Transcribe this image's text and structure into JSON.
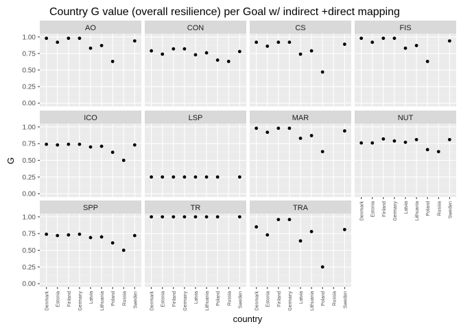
{
  "chart_data": {
    "type": "scatter",
    "title": "Country G value (overall resilience) per Goal w/ indirect +direct mapping",
    "xlabel": "country",
    "ylabel": "G",
    "categories": [
      "Denmark",
      "Estonia",
      "Finland",
      "Germany",
      "Latvia",
      "Lithuania",
      "Poland",
      "Russia",
      "Sweden"
    ],
    "yticks": [
      "0.00",
      "0.25",
      "0.50",
      "0.75",
      "1.00"
    ],
    "ylim": [
      -0.05,
      1.05
    ],
    "facet_layout": "wrap, 4 columns",
    "grid": true,
    "panels": [
      {
        "name": "AO",
        "values": [
          0.98,
          0.92,
          0.98,
          0.98,
          0.83,
          0.87,
          0.63,
          null,
          0.94
        ]
      },
      {
        "name": "CON",
        "values": [
          0.79,
          0.74,
          0.82,
          0.82,
          0.73,
          0.76,
          0.65,
          0.63,
          0.78
        ]
      },
      {
        "name": "CS",
        "values": [
          0.92,
          0.86,
          0.92,
          0.92,
          0.74,
          0.79,
          0.47,
          null,
          0.89
        ]
      },
      {
        "name": "FIS",
        "values": [
          0.98,
          0.92,
          0.98,
          0.98,
          0.83,
          0.87,
          0.63,
          null,
          0.94
        ]
      },
      {
        "name": "ICO",
        "values": [
          0.74,
          0.73,
          0.74,
          0.74,
          0.7,
          0.71,
          0.62,
          0.5,
          0.73
        ]
      },
      {
        "name": "LSP",
        "values": [
          0.25,
          0.25,
          0.25,
          0.25,
          0.25,
          0.25,
          0.25,
          null,
          0.25
        ]
      },
      {
        "name": "MAR",
        "values": [
          0.98,
          0.92,
          0.98,
          0.98,
          0.83,
          0.87,
          0.63,
          null,
          0.94
        ]
      },
      {
        "name": "NUT",
        "values": [
          0.76,
          0.76,
          0.82,
          0.79,
          0.77,
          0.81,
          0.66,
          0.63,
          0.81
        ]
      },
      {
        "name": "SPP",
        "values": [
          0.74,
          0.72,
          0.73,
          0.74,
          0.69,
          0.7,
          0.61,
          0.5,
          0.72
        ]
      },
      {
        "name": "TR",
        "values": [
          1.0,
          1.0,
          1.0,
          1.0,
          1.0,
          1.0,
          1.0,
          null,
          1.0
        ]
      },
      {
        "name": "TRA",
        "values": [
          0.85,
          0.73,
          0.96,
          0.96,
          0.64,
          0.78,
          0.25,
          null,
          0.81
        ]
      }
    ],
    "colors": {
      "panel_bg": "#ebebeb",
      "strip_bg": "#d9d9d9",
      "grid_major": "#ffffff",
      "grid_minor": "#f2f2f2",
      "point": "#000000",
      "text": "#1a1a1a",
      "tick_text": "#4d4d4d"
    }
  }
}
